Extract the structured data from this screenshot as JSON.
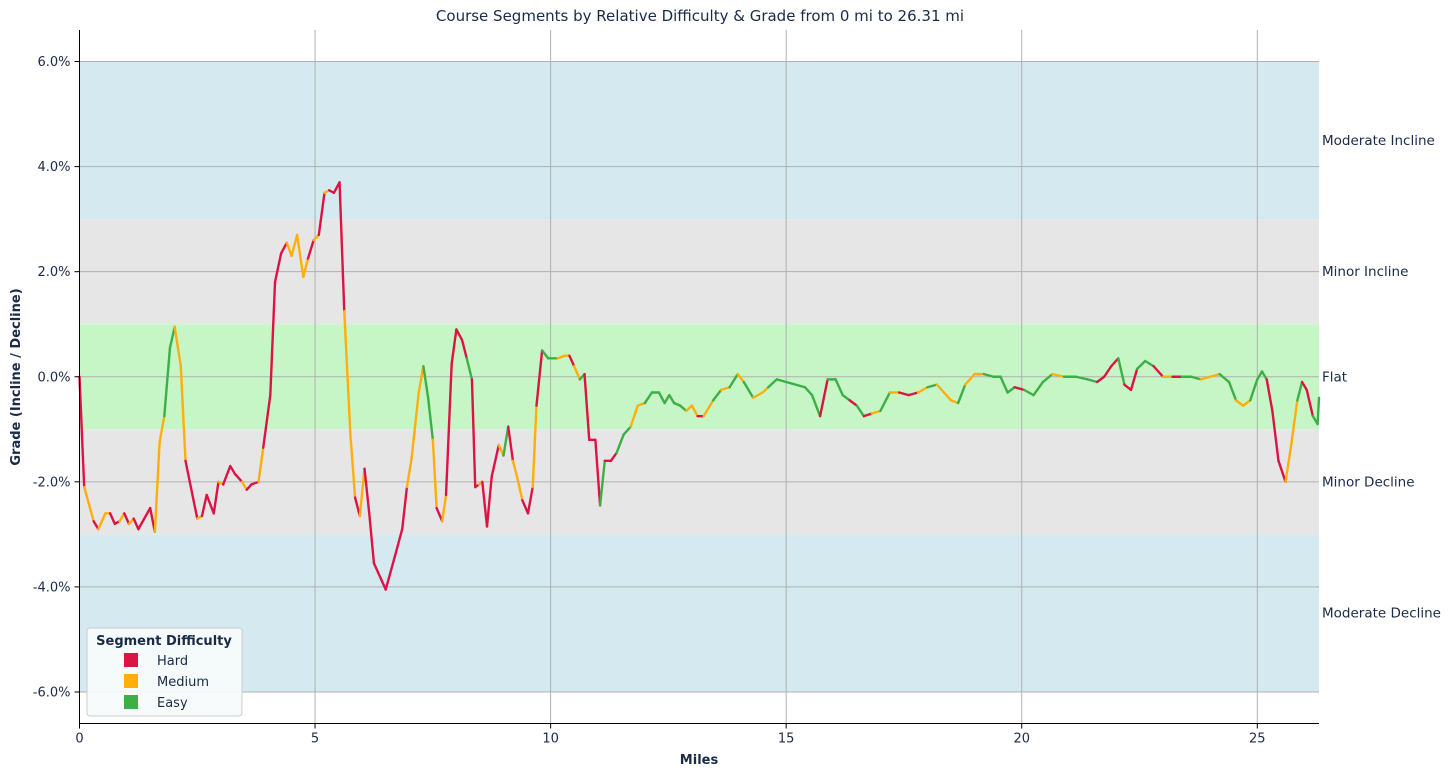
{
  "chart_data": {
    "type": "line",
    "title": "Course Segments by Relative Difficulty & Grade from 0 mi to 26.31 mi",
    "xlabel": "Miles",
    "ylabel": "Grade (Incline / Decline)",
    "xlim": [
      0,
      26.31
    ],
    "ylim": [
      -6.6,
      6.6
    ],
    "x_ticks": [
      0,
      5,
      10,
      15,
      20,
      25
    ],
    "x_tick_labels": [
      "0",
      "5",
      "10",
      "15",
      "20",
      "25"
    ],
    "y_ticks": [
      6,
      4,
      2,
      0,
      -2,
      -4,
      -6
    ],
    "y_tick_labels": [
      "6.0%",
      "4.0%",
      "2.0%",
      "0.0%",
      "-2.0%",
      "-4.0%",
      "-6.0%"
    ],
    "grid": true,
    "colors": {
      "Hard": "#dc1446",
      "Medium": "#ffae0a",
      "Easy": "#3caf46",
      "moderate_band": "#d4eaf0",
      "minor_band": "#e6e6e6",
      "flat_band": "#c6f6c6"
    },
    "bands": [
      {
        "label": "Moderate Incline",
        "range": [
          3,
          6
        ]
      },
      {
        "label": "Minor Incline",
        "range": [
          1,
          3
        ]
      },
      {
        "label": "Flat",
        "range": [
          -1,
          1
        ]
      },
      {
        "label": "Minor Decline",
        "range": [
          -3,
          -1
        ]
      },
      {
        "label": "Moderate Decline",
        "range": [
          -6,
          -3
        ]
      }
    ],
    "legend": {
      "title": "Segment Difficulty",
      "position": "lower-left",
      "entries": [
        "Hard",
        "Medium",
        "Easy"
      ]
    },
    "series": [
      {
        "x": 0.0,
        "y": 0.0,
        "difficulty": "Hard"
      },
      {
        "x": 0.1,
        "y": -2.1,
        "difficulty": "Medium"
      },
      {
        "x": 0.3,
        "y": -2.75,
        "difficulty": "Hard"
      },
      {
        "x": 0.4,
        "y": -2.9,
        "difficulty": "Medium"
      },
      {
        "x": 0.55,
        "y": -2.6,
        "difficulty": "Medium"
      },
      {
        "x": 0.65,
        "y": -2.6,
        "difficulty": "Hard"
      },
      {
        "x": 0.75,
        "y": -2.8,
        "difficulty": "Hard"
      },
      {
        "x": 0.85,
        "y": -2.75,
        "difficulty": "Medium"
      },
      {
        "x": 0.95,
        "y": -2.6,
        "difficulty": "Hard"
      },
      {
        "x": 1.05,
        "y": -2.8,
        "difficulty": "Medium"
      },
      {
        "x": 1.15,
        "y": -2.7,
        "difficulty": "Hard"
      },
      {
        "x": 1.25,
        "y": -2.9,
        "difficulty": "Hard"
      },
      {
        "x": 1.5,
        "y": -2.5,
        "difficulty": "Hard"
      },
      {
        "x": 1.6,
        "y": -2.95,
        "difficulty": "Medium"
      },
      {
        "x": 1.7,
        "y": -1.25,
        "difficulty": "Medium"
      },
      {
        "x": 1.8,
        "y": -0.75,
        "difficulty": "Easy"
      },
      {
        "x": 1.92,
        "y": 0.55,
        "difficulty": "Easy"
      },
      {
        "x": 2.02,
        "y": 0.95,
        "difficulty": "Medium"
      },
      {
        "x": 2.15,
        "y": 0.2,
        "difficulty": "Medium"
      },
      {
        "x": 2.25,
        "y": -1.6,
        "difficulty": "Hard"
      },
      {
        "x": 2.5,
        "y": -2.7,
        "difficulty": "Medium"
      },
      {
        "x": 2.6,
        "y": -2.65,
        "difficulty": "Hard"
      },
      {
        "x": 2.7,
        "y": -2.25,
        "difficulty": "Hard"
      },
      {
        "x": 2.85,
        "y": -2.6,
        "difficulty": "Hard"
      },
      {
        "x": 2.95,
        "y": -2.0,
        "difficulty": "Medium"
      },
      {
        "x": 3.05,
        "y": -2.05,
        "difficulty": "Hard"
      },
      {
        "x": 3.2,
        "y": -1.7,
        "difficulty": "Hard"
      },
      {
        "x": 3.3,
        "y": -1.85,
        "difficulty": "Hard"
      },
      {
        "x": 3.45,
        "y": -2.0,
        "difficulty": "Medium"
      },
      {
        "x": 3.55,
        "y": -2.15,
        "difficulty": "Hard"
      },
      {
        "x": 3.65,
        "y": -2.05,
        "difficulty": "Hard"
      },
      {
        "x": 3.8,
        "y": -2.0,
        "difficulty": "Medium"
      },
      {
        "x": 3.9,
        "y": -1.35,
        "difficulty": "Hard"
      },
      {
        "x": 4.05,
        "y": -0.35,
        "difficulty": "Hard"
      },
      {
        "x": 4.15,
        "y": 1.8,
        "difficulty": "Hard"
      },
      {
        "x": 4.28,
        "y": 2.35,
        "difficulty": "Hard"
      },
      {
        "x": 4.4,
        "y": 2.55,
        "difficulty": "Medium"
      },
      {
        "x": 4.5,
        "y": 2.3,
        "difficulty": "Medium"
      },
      {
        "x": 4.62,
        "y": 2.7,
        "difficulty": "Medium"
      },
      {
        "x": 4.75,
        "y": 1.9,
        "difficulty": "Medium"
      },
      {
        "x": 4.85,
        "y": 2.25,
        "difficulty": "Hard"
      },
      {
        "x": 4.97,
        "y": 2.6,
        "difficulty": "Medium"
      },
      {
        "x": 5.08,
        "y": 2.7,
        "difficulty": "Hard"
      },
      {
        "x": 5.2,
        "y": 3.5,
        "difficulty": "Medium"
      },
      {
        "x": 5.3,
        "y": 3.55,
        "difficulty": "Hard"
      },
      {
        "x": 5.4,
        "y": 3.5,
        "difficulty": "Hard"
      },
      {
        "x": 5.52,
        "y": 3.7,
        "difficulty": "Hard"
      },
      {
        "x": 5.62,
        "y": 1.25,
        "difficulty": "Medium"
      },
      {
        "x": 5.75,
        "y": -1.1,
        "difficulty": "Medium"
      },
      {
        "x": 5.85,
        "y": -2.3,
        "difficulty": "Hard"
      },
      {
        "x": 5.95,
        "y": -2.65,
        "difficulty": "Medium"
      },
      {
        "x": 6.05,
        "y": -1.75,
        "difficulty": "Hard"
      },
      {
        "x": 6.15,
        "y": -2.6,
        "difficulty": "Hard"
      },
      {
        "x": 6.25,
        "y": -3.55,
        "difficulty": "Hard"
      },
      {
        "x": 6.5,
        "y": -4.05,
        "difficulty": "Hard"
      },
      {
        "x": 6.7,
        "y": -3.4,
        "difficulty": "Hard"
      },
      {
        "x": 6.85,
        "y": -2.9,
        "difficulty": "Hard"
      },
      {
        "x": 6.95,
        "y": -2.1,
        "difficulty": "Medium"
      },
      {
        "x": 7.05,
        "y": -1.55,
        "difficulty": "Medium"
      },
      {
        "x": 7.2,
        "y": -0.3,
        "difficulty": "Medium"
      },
      {
        "x": 7.3,
        "y": 0.2,
        "difficulty": "Easy"
      },
      {
        "x": 7.4,
        "y": -0.4,
        "difficulty": "Easy"
      },
      {
        "x": 7.5,
        "y": -1.2,
        "difficulty": "Medium"
      },
      {
        "x": 7.58,
        "y": -2.5,
        "difficulty": "Hard"
      },
      {
        "x": 7.7,
        "y": -2.75,
        "difficulty": "Medium"
      },
      {
        "x": 7.78,
        "y": -2.25,
        "difficulty": "Hard"
      },
      {
        "x": 7.9,
        "y": 0.25,
        "difficulty": "Hard"
      },
      {
        "x": 8.0,
        "y": 0.9,
        "difficulty": "Hard"
      },
      {
        "x": 8.12,
        "y": 0.7,
        "difficulty": "Hard"
      },
      {
        "x": 8.22,
        "y": 0.35,
        "difficulty": "Easy"
      },
      {
        "x": 8.33,
        "y": -0.05,
        "difficulty": "Hard"
      },
      {
        "x": 8.4,
        "y": -2.1,
        "difficulty": "Hard"
      },
      {
        "x": 8.48,
        "y": -2.05,
        "difficulty": "Medium"
      },
      {
        "x": 8.55,
        "y": -2.0,
        "difficulty": "Hard"
      },
      {
        "x": 8.65,
        "y": -2.85,
        "difficulty": "Hard"
      },
      {
        "x": 8.75,
        "y": -1.9,
        "difficulty": "Hard"
      },
      {
        "x": 8.9,
        "y": -1.3,
        "difficulty": "Medium"
      },
      {
        "x": 9.0,
        "y": -1.5,
        "difficulty": "Easy"
      },
      {
        "x": 9.1,
        "y": -0.95,
        "difficulty": "Hard"
      },
      {
        "x": 9.2,
        "y": -1.6,
        "difficulty": "Medium"
      },
      {
        "x": 9.3,
        "y": -1.95,
        "difficulty": "Medium"
      },
      {
        "x": 9.4,
        "y": -2.35,
        "difficulty": "Hard"
      },
      {
        "x": 9.52,
        "y": -2.6,
        "difficulty": "Hard"
      },
      {
        "x": 9.62,
        "y": -2.1,
        "difficulty": "Medium"
      },
      {
        "x": 9.7,
        "y": -0.55,
        "difficulty": "Hard"
      },
      {
        "x": 9.82,
        "y": 0.5,
        "difficulty": "Easy"
      },
      {
        "x": 9.95,
        "y": 0.35,
        "difficulty": "Easy"
      },
      {
        "x": 10.15,
        "y": 0.35,
        "difficulty": "Medium"
      },
      {
        "x": 10.3,
        "y": 0.4,
        "difficulty": "Medium"
      },
      {
        "x": 10.4,
        "y": 0.4,
        "difficulty": "Hard"
      },
      {
        "x": 10.5,
        "y": 0.2,
        "difficulty": "Medium"
      },
      {
        "x": 10.62,
        "y": -0.05,
        "difficulty": "Easy"
      },
      {
        "x": 10.72,
        "y": 0.05,
        "difficulty": "Hard"
      },
      {
        "x": 10.82,
        "y": -1.2,
        "difficulty": "Hard"
      },
      {
        "x": 10.95,
        "y": -1.2,
        "difficulty": "Hard"
      },
      {
        "x": 11.05,
        "y": -2.45,
        "difficulty": "Easy"
      },
      {
        "x": 11.15,
        "y": -1.6,
        "difficulty": "Hard"
      },
      {
        "x": 11.28,
        "y": -1.6,
        "difficulty": "Hard"
      },
      {
        "x": 11.4,
        "y": -1.45,
        "difficulty": "Easy"
      },
      {
        "x": 11.55,
        "y": -1.1,
        "difficulty": "Easy"
      },
      {
        "x": 11.7,
        "y": -0.95,
        "difficulty": "Medium"
      },
      {
        "x": 11.85,
        "y": -0.55,
        "difficulty": "Medium"
      },
      {
        "x": 12.0,
        "y": -0.5,
        "difficulty": "Easy"
      },
      {
        "x": 12.15,
        "y": -0.3,
        "difficulty": "Easy"
      },
      {
        "x": 12.3,
        "y": -0.3,
        "difficulty": "Easy"
      },
      {
        "x": 12.42,
        "y": -0.5,
        "difficulty": "Easy"
      },
      {
        "x": 12.52,
        "y": -0.35,
        "difficulty": "Easy"
      },
      {
        "x": 12.62,
        "y": -0.5,
        "difficulty": "Easy"
      },
      {
        "x": 12.75,
        "y": -0.55,
        "difficulty": "Easy"
      },
      {
        "x": 12.88,
        "y": -0.65,
        "difficulty": "Medium"
      },
      {
        "x": 13.0,
        "y": -0.55,
        "difficulty": "Medium"
      },
      {
        "x": 13.12,
        "y": -0.75,
        "difficulty": "Hard"
      },
      {
        "x": 13.25,
        "y": -0.75,
        "difficulty": "Medium"
      },
      {
        "x": 13.45,
        "y": -0.45,
        "difficulty": "Easy"
      },
      {
        "x": 13.62,
        "y": -0.25,
        "difficulty": "Medium"
      },
      {
        "x": 13.8,
        "y": -0.2,
        "difficulty": "Easy"
      },
      {
        "x": 13.97,
        "y": 0.05,
        "difficulty": "Medium"
      },
      {
        "x": 14.1,
        "y": -0.1,
        "difficulty": "Easy"
      },
      {
        "x": 14.3,
        "y": -0.4,
        "difficulty": "Medium"
      },
      {
        "x": 14.5,
        "y": -0.3,
        "difficulty": "Medium"
      },
      {
        "x": 14.62,
        "y": -0.2,
        "difficulty": "Easy"
      },
      {
        "x": 14.8,
        "y": -0.05,
        "difficulty": "Easy"
      },
      {
        "x": 15.0,
        "y": -0.1,
        "difficulty": "Easy"
      },
      {
        "x": 15.2,
        "y": -0.15,
        "difficulty": "Easy"
      },
      {
        "x": 15.4,
        "y": -0.2,
        "difficulty": "Easy"
      },
      {
        "x": 15.55,
        "y": -0.35,
        "difficulty": "Easy"
      },
      {
        "x": 15.72,
        "y": -0.75,
        "difficulty": "Hard"
      },
      {
        "x": 15.88,
        "y": -0.05,
        "difficulty": "Easy"
      },
      {
        "x": 16.05,
        "y": -0.05,
        "difficulty": "Easy"
      },
      {
        "x": 16.2,
        "y": -0.35,
        "difficulty": "Easy"
      },
      {
        "x": 16.35,
        "y": -0.45,
        "difficulty": "Hard"
      },
      {
        "x": 16.5,
        "y": -0.55,
        "difficulty": "Easy"
      },
      {
        "x": 16.65,
        "y": -0.75,
        "difficulty": "Hard"
      },
      {
        "x": 16.82,
        "y": -0.7,
        "difficulty": "Medium"
      },
      {
        "x": 17.0,
        "y": -0.65,
        "difficulty": "Easy"
      },
      {
        "x": 17.2,
        "y": -0.3,
        "difficulty": "Medium"
      },
      {
        "x": 17.4,
        "y": -0.3,
        "difficulty": "Hard"
      },
      {
        "x": 17.6,
        "y": -0.35,
        "difficulty": "Hard"
      },
      {
        "x": 17.8,
        "y": -0.3,
        "difficulty": "Medium"
      },
      {
        "x": 18.0,
        "y": -0.2,
        "difficulty": "Easy"
      },
      {
        "x": 18.2,
        "y": -0.15,
        "difficulty": "Medium"
      },
      {
        "x": 18.35,
        "y": -0.3,
        "difficulty": "Medium"
      },
      {
        "x": 18.5,
        "y": -0.45,
        "difficulty": "Medium"
      },
      {
        "x": 18.65,
        "y": -0.5,
        "difficulty": "Easy"
      },
      {
        "x": 18.8,
        "y": -0.15,
        "difficulty": "Medium"
      },
      {
        "x": 19.0,
        "y": 0.05,
        "difficulty": "Medium"
      },
      {
        "x": 19.2,
        "y": 0.05,
        "difficulty": "Easy"
      },
      {
        "x": 19.4,
        "y": 0.0,
        "difficulty": "Easy"
      },
      {
        "x": 19.55,
        "y": 0.0,
        "difficulty": "Easy"
      },
      {
        "x": 19.7,
        "y": -0.3,
        "difficulty": "Easy"
      },
      {
        "x": 19.85,
        "y": -0.2,
        "difficulty": "Hard"
      },
      {
        "x": 20.05,
        "y": -0.25,
        "difficulty": "Easy"
      },
      {
        "x": 20.25,
        "y": -0.35,
        "difficulty": "Easy"
      },
      {
        "x": 20.45,
        "y": -0.1,
        "difficulty": "Easy"
      },
      {
        "x": 20.65,
        "y": 0.05,
        "difficulty": "Medium"
      },
      {
        "x": 20.9,
        "y": 0.0,
        "difficulty": "Easy"
      },
      {
        "x": 21.15,
        "y": 0.0,
        "difficulty": "Easy"
      },
      {
        "x": 21.4,
        "y": -0.05,
        "difficulty": "Easy"
      },
      {
        "x": 21.6,
        "y": -0.1,
        "difficulty": "Hard"
      },
      {
        "x": 21.75,
        "y": 0.0,
        "difficulty": "Hard"
      },
      {
        "x": 21.9,
        "y": 0.2,
        "difficulty": "Hard"
      },
      {
        "x": 22.05,
        "y": 0.35,
        "difficulty": "Easy"
      },
      {
        "x": 22.18,
        "y": -0.15,
        "difficulty": "Hard"
      },
      {
        "x": 22.32,
        "y": -0.25,
        "difficulty": "Hard"
      },
      {
        "x": 22.45,
        "y": 0.15,
        "difficulty": "Easy"
      },
      {
        "x": 22.62,
        "y": 0.3,
        "difficulty": "Easy"
      },
      {
        "x": 22.8,
        "y": 0.2,
        "difficulty": "Hard"
      },
      {
        "x": 23.0,
        "y": 0.0,
        "difficulty": "Medium"
      },
      {
        "x": 23.2,
        "y": 0.0,
        "difficulty": "Hard"
      },
      {
        "x": 23.4,
        "y": 0.0,
        "difficulty": "Easy"
      },
      {
        "x": 23.6,
        "y": 0.0,
        "difficulty": "Easy"
      },
      {
        "x": 23.8,
        "y": -0.05,
        "difficulty": "Medium"
      },
      {
        "x": 24.0,
        "y": 0.0,
        "difficulty": "Medium"
      },
      {
        "x": 24.2,
        "y": 0.05,
        "difficulty": "Easy"
      },
      {
        "x": 24.4,
        "y": -0.1,
        "difficulty": "Easy"
      },
      {
        "x": 24.55,
        "y": -0.45,
        "difficulty": "Medium"
      },
      {
        "x": 24.7,
        "y": -0.55,
        "difficulty": "Medium"
      },
      {
        "x": 24.85,
        "y": -0.45,
        "difficulty": "Easy"
      },
      {
        "x": 25.0,
        "y": -0.05,
        "difficulty": "Easy"
      },
      {
        "x": 25.1,
        "y": 0.1,
        "difficulty": "Easy"
      },
      {
        "x": 25.2,
        "y": -0.05,
        "difficulty": "Hard"
      },
      {
        "x": 25.32,
        "y": -0.65,
        "difficulty": "Hard"
      },
      {
        "x": 25.45,
        "y": -1.6,
        "difficulty": "Hard"
      },
      {
        "x": 25.6,
        "y": -2.0,
        "difficulty": "Medium"
      },
      {
        "x": 25.72,
        "y": -1.3,
        "difficulty": "Medium"
      },
      {
        "x": 25.85,
        "y": -0.45,
        "difficulty": "Easy"
      },
      {
        "x": 25.95,
        "y": -0.1,
        "difficulty": "Hard"
      },
      {
        "x": 26.05,
        "y": -0.25,
        "difficulty": "Hard"
      },
      {
        "x": 26.18,
        "y": -0.75,
        "difficulty": "Easy"
      },
      {
        "x": 26.28,
        "y": -0.9,
        "difficulty": "Easy"
      },
      {
        "x": 26.31,
        "y": -0.4,
        "difficulty": null
      }
    ]
  }
}
